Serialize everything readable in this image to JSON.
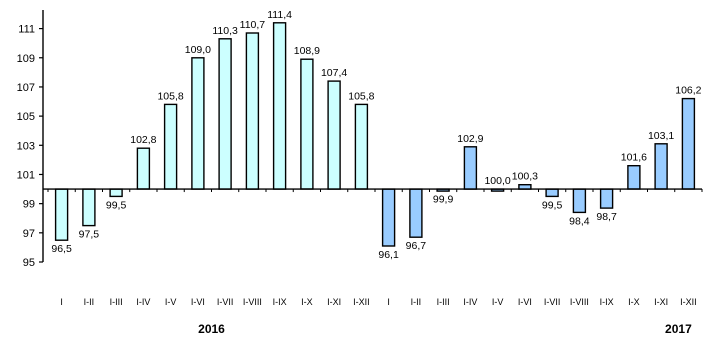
{
  "chart_data": {
    "type": "bar",
    "baseline": 100,
    "ylim": [
      95,
      112
    ],
    "yticks": [
      95,
      97,
      99,
      101,
      103,
      105,
      107,
      109,
      111
    ],
    "grid": false,
    "legend": "none",
    "categories": [
      "I",
      "I-II",
      "I-III",
      "I-IV",
      "I-V",
      "I-VI",
      "I-VII",
      "I-VIII",
      "I-IX",
      "I-X",
      "I-XI",
      "I-XII",
      "I",
      "I-II",
      "I-III",
      "I-IV",
      "I-V",
      "I-VI",
      "I-VII",
      "I-VIII",
      "I-IX",
      "I-X",
      "I-XI",
      "I-XII"
    ],
    "values": [
      96.5,
      97.5,
      99.5,
      102.8,
      105.8,
      109.0,
      110.3,
      110.7,
      111.4,
      108.9,
      107.4,
      105.8,
      96.1,
      96.7,
      99.9,
      102.9,
      100.0,
      100.3,
      99.5,
      98.4,
      98.7,
      101.6,
      103.1,
      106.2
    ],
    "value_labels": [
      "96,5",
      "97,5",
      "99,5",
      "102,8",
      "105,8",
      "109,0",
      "110,3",
      "110,7",
      "111,4",
      "108,9",
      "107,4",
      "105,8",
      "96,1",
      "96,7",
      "99,9",
      "102,9",
      "100,0",
      "100,3",
      "99,5",
      "98,4",
      "98,7",
      "101,6",
      "103,1",
      "106,2"
    ],
    "groups": [
      {
        "label": "2016",
        "start": 0,
        "end": 11,
        "fill": "#ccffff"
      },
      {
        "label": "2017",
        "start": 12,
        "end": 23,
        "fill": "#99ccff"
      }
    ],
    "colors": {
      "bar_stroke": "#000000",
      "axis": "#000000",
      "text": "#000000"
    }
  }
}
